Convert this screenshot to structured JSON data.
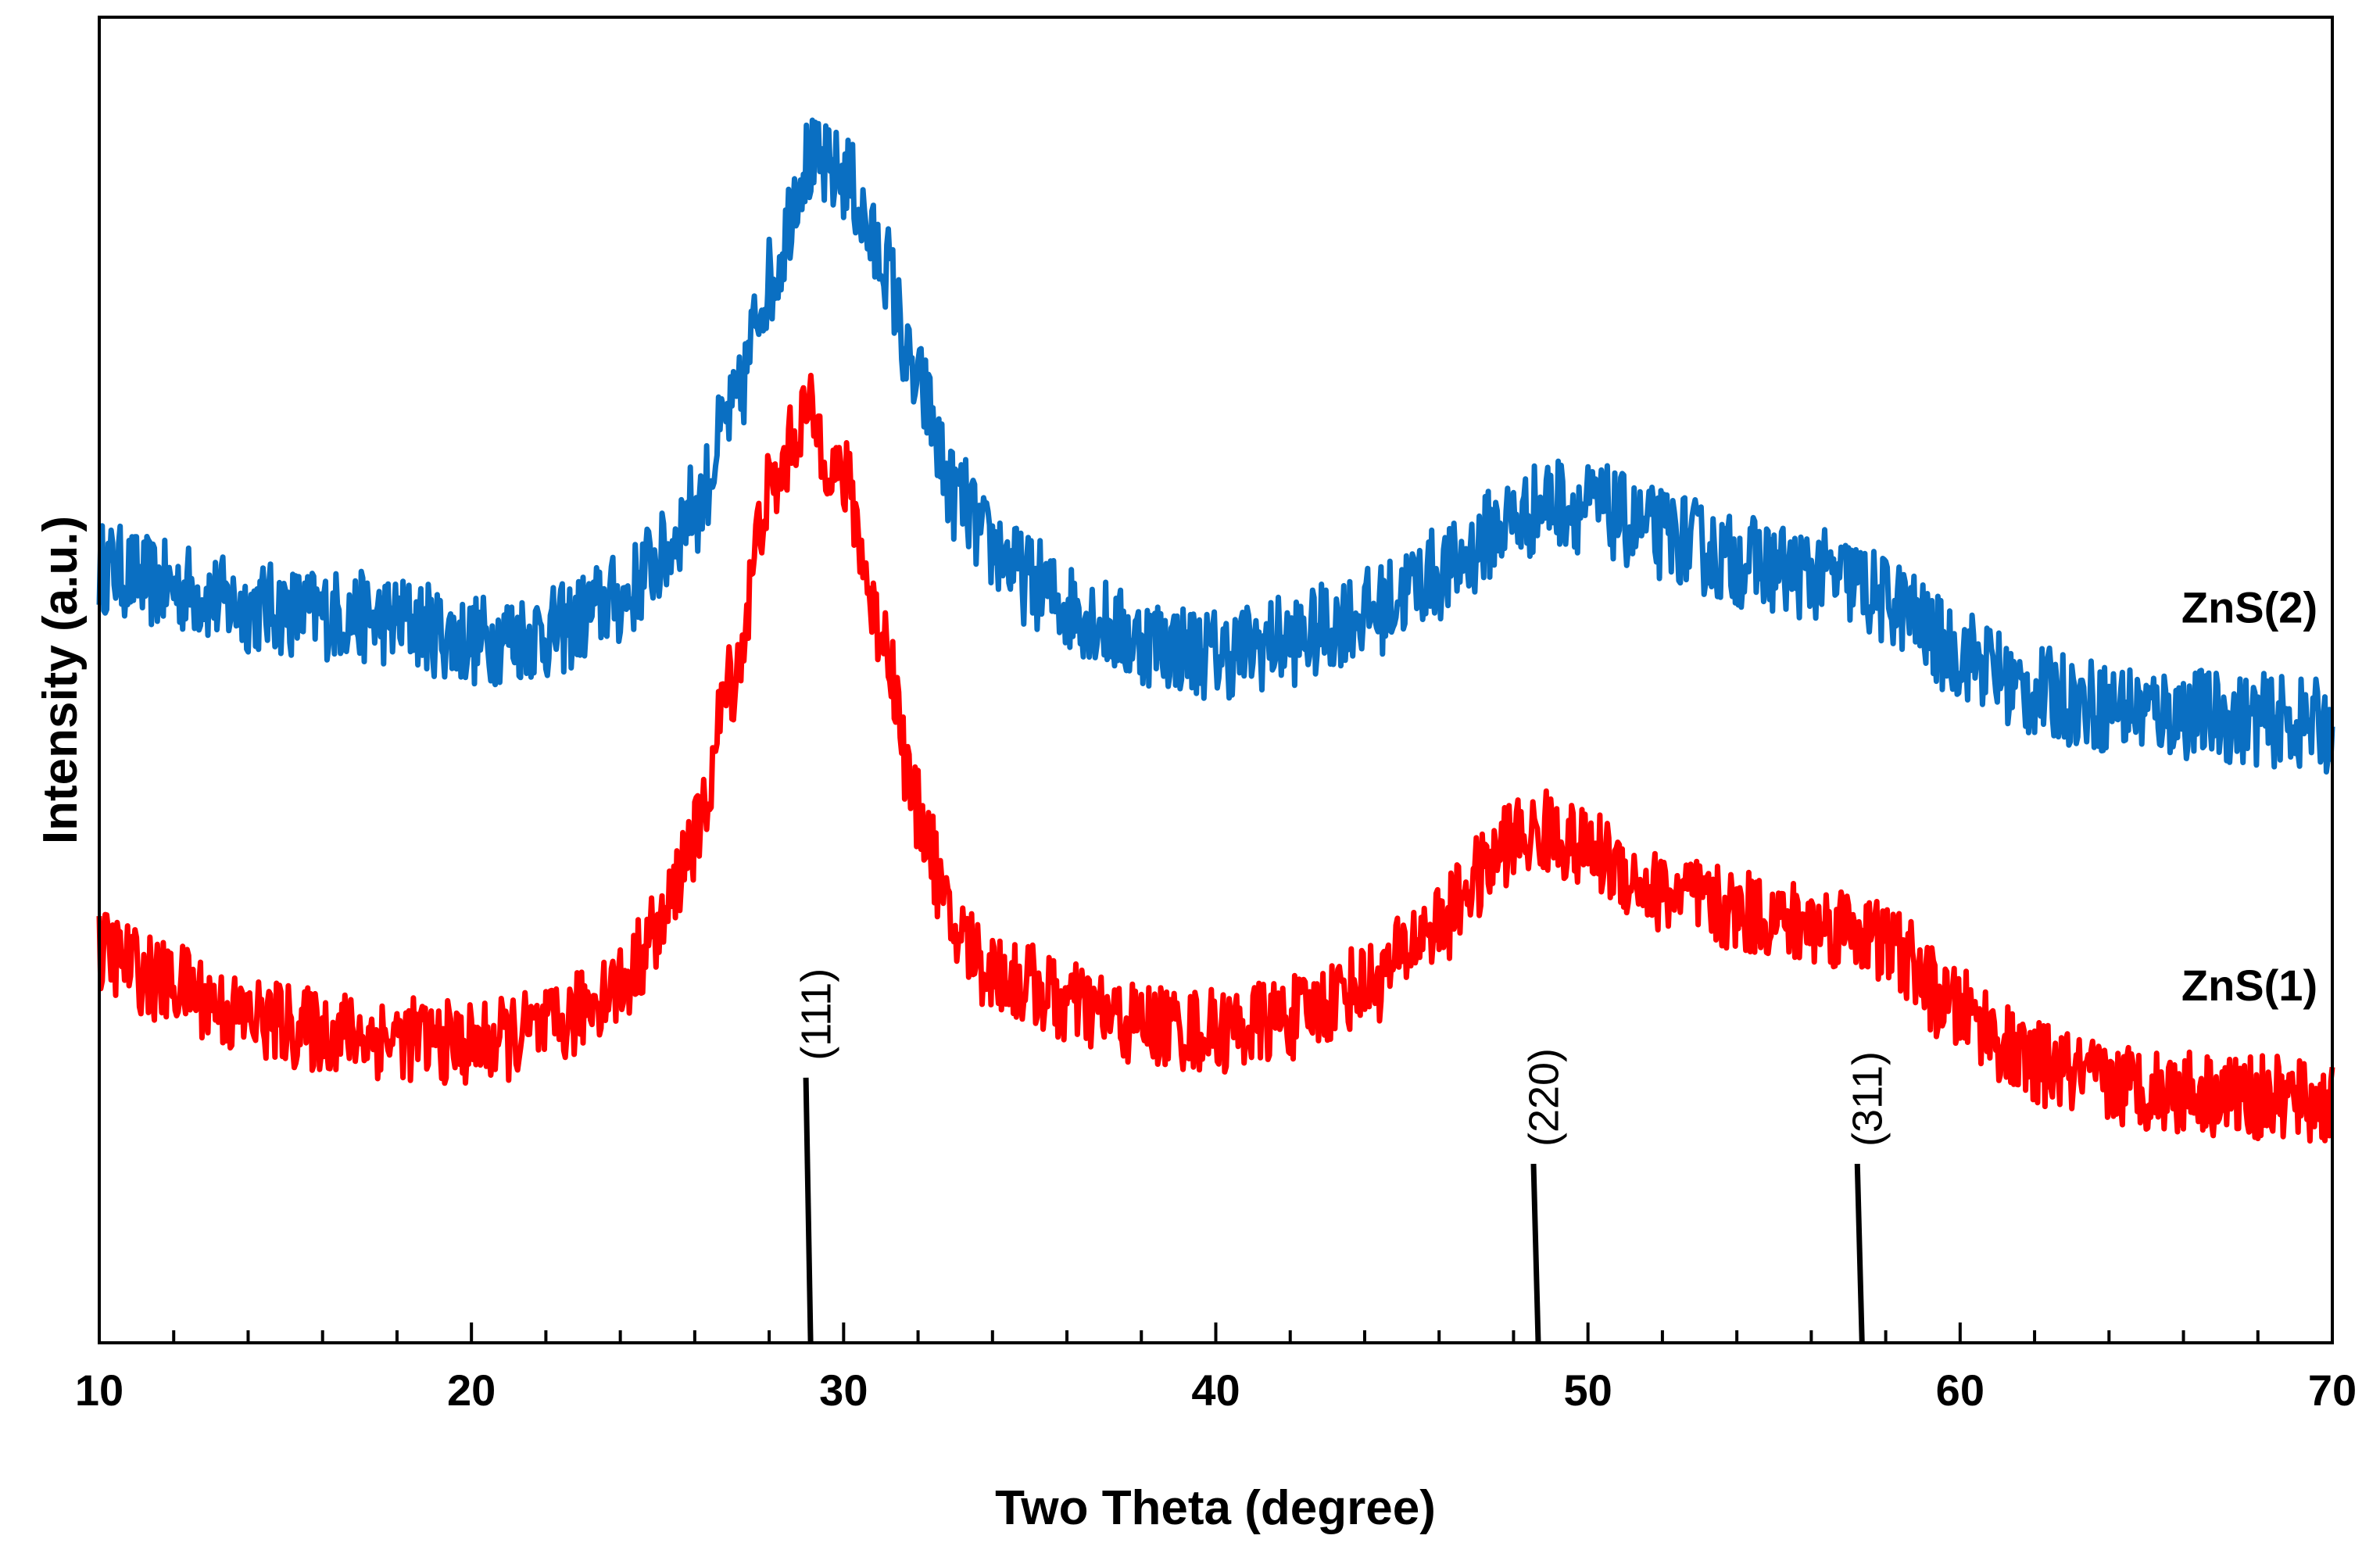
{
  "chart_data": {
    "type": "line",
    "title": "",
    "xlabel": "Two Theta (degree)",
    "ylabel": "Intensity (a.u.)",
    "xlim": [
      10,
      70
    ],
    "ylim": [
      0,
      100
    ],
    "x_ticks": [
      10,
      20,
      30,
      40,
      50,
      60,
      70
    ],
    "x_tick_labels": [
      "10",
      "20",
      "30",
      "40",
      "50",
      "60",
      "70"
    ],
    "x_minor_step": 2,
    "y_ticks_shown": false,
    "grid": false,
    "colors": {
      "ZnS(2)": "#0a6fc2",
      "ZnS(1)": "#ff0000",
      "reference": "#000000"
    },
    "series": [
      {
        "name": "ZnS(2)",
        "color": "#0a6fc2",
        "noise": 3.5,
        "x": [
          10,
          12,
          14,
          16,
          18,
          20,
          22,
          24,
          25,
          26,
          27,
          28,
          29,
          30,
          31,
          32,
          33,
          34,
          35,
          36,
          38,
          40,
          42,
          44,
          46,
          48,
          49,
          50,
          52,
          54,
          56,
          57,
          58,
          60,
          62,
          64,
          66,
          68,
          70
        ],
        "values": [
          58.5,
          57,
          55.5,
          55,
          54.5,
          53,
          53.5,
          56,
          59,
          63,
          70,
          80,
          89,
          88,
          82,
          72,
          64,
          60,
          57.5,
          55.5,
          53,
          52,
          53,
          55,
          58,
          62,
          63.5,
          63,
          61,
          59,
          58,
          57.5,
          56,
          52,
          49,
          48,
          47.5,
          47,
          46.5
        ]
      },
      {
        "name": "ZnS(1)",
        "color": "#ff0000",
        "noise": 3.2,
        "x": [
          10,
          12,
          14,
          16,
          18,
          20,
          22,
          24,
          25,
          26,
          27,
          28,
          29,
          30,
          31,
          32,
          33,
          34,
          35,
          36,
          38,
          40,
          42,
          44,
          46,
          47,
          48,
          49,
          50,
          52,
          54,
          56,
          57,
          58,
          60,
          62,
          64,
          66,
          68,
          70
        ],
        "values": [
          29.5,
          27,
          24.5,
          23.5,
          23,
          22.5,
          23.5,
          27,
          31,
          38,
          50,
          64,
          70,
          65,
          54,
          40,
          31,
          28,
          27,
          25.5,
          24,
          23.5,
          24.5,
          27,
          31.5,
          35,
          38,
          38.5,
          37,
          34,
          32.5,
          31.5,
          31.5,
          30,
          25,
          21,
          19.5,
          19,
          18.5,
          18
        ]
      }
    ],
    "legend": [
      {
        "label": "ZnS(2)",
        "series": "ZnS(2)"
      },
      {
        "label": "ZnS(1)",
        "series": "ZnS(1)"
      }
    ],
    "reference_peaks": [
      {
        "label": "(111)",
        "x": 29.05,
        "height": 20
      },
      {
        "label": "(220)",
        "x": 48.6,
        "height": 13.5
      },
      {
        "label": "(311)",
        "x": 57.3,
        "height": 13.5
      }
    ]
  }
}
